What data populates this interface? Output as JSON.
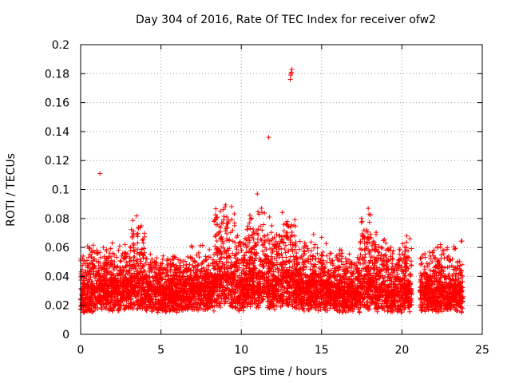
{
  "chart_data": {
    "type": "scatter",
    "title": "Day 304 of 2016, Rate Of TEC Index for receiver ofw2",
    "xlabel": "GPS time / hours",
    "ylabel": "ROTI / TECUs",
    "xlim": [
      0,
      25
    ],
    "ylim": [
      0,
      0.2
    ],
    "xticks": [
      0,
      5,
      10,
      15,
      20,
      25
    ],
    "xtick_labels": [
      "0",
      "5",
      "10",
      "15",
      "20",
      "25"
    ],
    "yticks": [
      0,
      0.02,
      0.04,
      0.06,
      0.08,
      0.1,
      0.12,
      0.14,
      0.16,
      0.18,
      0.2
    ],
    "ytick_labels": [
      "0",
      "0.02",
      "0.04",
      "0.06",
      "0.08",
      "0.1",
      "0.12",
      "0.14",
      "0.16",
      "0.18",
      "0.2"
    ],
    "grid": true,
    "marker": "+",
    "color": "#ff0000",
    "series": [
      {
        "name": "ROTI",
        "outliers": [
          [
            1.2,
            0.111
          ],
          [
            11.7,
            0.136
          ],
          [
            11.0,
            0.097
          ],
          [
            13.05,
            0.176
          ],
          [
            13.1,
            0.18
          ],
          [
            13.15,
            0.183
          ],
          [
            13.12,
            0.181
          ],
          [
            13.08,
            0.179
          ],
          [
            9.0,
            0.088
          ],
          [
            8.7,
            0.085
          ],
          [
            17.9,
            0.087
          ],
          [
            17.95,
            0.083
          ],
          [
            11.75,
            0.081
          ],
          [
            14.5,
            0.069
          ],
          [
            15.0,
            0.067
          ],
          [
            20.3,
            0.068
          ],
          [
            20.5,
            0.066
          ],
          [
            22.4,
            0.062
          ],
          [
            3.6,
            0.074
          ],
          [
            3.5,
            0.069
          ],
          [
            12.8,
            0.07
          ],
          [
            12.9,
            0.066
          ],
          [
            19.0,
            0.063
          ],
          [
            11.9,
            0.075
          ],
          [
            10.5,
            0.077
          ],
          [
            10.55,
            0.073
          ],
          [
            9.1,
            0.081
          ],
          [
            8.9,
            0.079
          ],
          [
            13.2,
            0.062
          ],
          [
            14.6,
            0.062
          ]
        ],
        "bands": [
          {
            "x": [
              0.0,
              1.0
            ],
            "base": 0.018,
            "spread": 0.03
          },
          {
            "x": [
              1.0,
              3.0
            ],
            "base": 0.02,
            "spread": 0.028
          },
          {
            "x": [
              3.0,
              4.0
            ],
            "base": 0.022,
            "spread": 0.045
          },
          {
            "x": [
              4.0,
              6.5
            ],
            "base": 0.018,
            "spread": 0.025
          },
          {
            "x": [
              6.5,
              8.3
            ],
            "base": 0.02,
            "spread": 0.028
          },
          {
            "x": [
              8.3,
              9.6
            ],
            "base": 0.024,
            "spread": 0.055
          },
          {
            "x": [
              9.6,
              10.2
            ],
            "base": 0.02,
            "spread": 0.035
          },
          {
            "x": [
              10.2,
              11.5
            ],
            "base": 0.024,
            "spread": 0.05
          },
          {
            "x": [
              11.5,
              12.5
            ],
            "base": 0.022,
            "spread": 0.038
          },
          {
            "x": [
              12.5,
              13.4
            ],
            "base": 0.024,
            "spread": 0.045
          },
          {
            "x": [
              13.4,
              15.5
            ],
            "base": 0.02,
            "spread": 0.032
          },
          {
            "x": [
              15.5,
              17.4
            ],
            "base": 0.018,
            "spread": 0.03
          },
          {
            "x": [
              17.4,
              18.4
            ],
            "base": 0.022,
            "spread": 0.045
          },
          {
            "x": [
              18.4,
              20.6
            ],
            "base": 0.018,
            "spread": 0.035
          },
          {
            "x": [
              21.1,
              23.8
            ],
            "base": 0.018,
            "spread": 0.032
          }
        ]
      }
    ]
  }
}
